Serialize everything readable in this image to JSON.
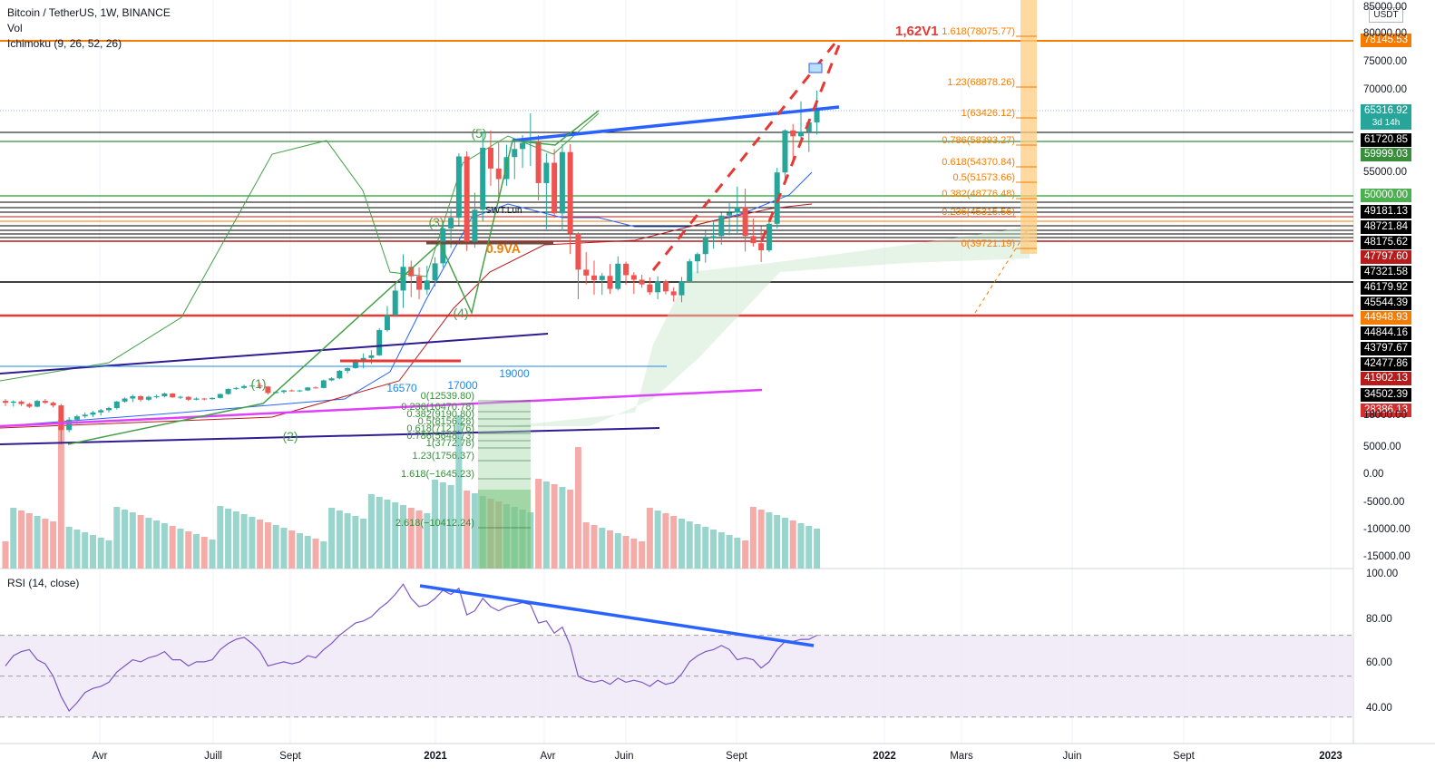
{
  "header": {
    "title": "Bitcoin / TetherUS, 1W, BINANCE",
    "vol": "Vol",
    "ichimoku": "Ichimoku (9, 26, 52, 26)"
  },
  "rsi_title": "RSI (14, close)",
  "unit_label": "USDT",
  "price_axis": [
    "85000.00",
    "80000.00",
    "75000.00",
    "70000.00",
    "55000.00",
    "5000.00",
    "0.00",
    "-5000.00",
    "-10000.00",
    "-15000.00",
    "18000.00"
  ],
  "rsi_axis": [
    "100.00",
    "80.00",
    "60.00",
    "40.00"
  ],
  "time_axis": [
    "Avr",
    "Juill",
    "Sept",
    "2021",
    "Avr",
    "Juin",
    "Sept",
    "2022",
    "Mars",
    "Juin",
    "Sept",
    "2023"
  ],
  "price_tags": [
    {
      "text": "78145.53",
      "color": "#f57c00"
    },
    {
      "text": "65316.92",
      "sub": "3d 14h",
      "color": "#26a69a"
    },
    {
      "text": "61720.85",
      "color": "#000000"
    },
    {
      "text": "59999.03",
      "color": "#388e3c"
    },
    {
      "text": "50000.00",
      "color": "#4caf50"
    },
    {
      "text": "49181.13",
      "color": "#000000"
    },
    {
      "text": "48721.84",
      "color": "#000000"
    },
    {
      "text": "48175.62",
      "color": "#000000"
    },
    {
      "text": "47797.60",
      "color": "#b71c1c"
    },
    {
      "text": "47321.58",
      "color": "#000000"
    },
    {
      "text": "46179.92",
      "color": "#000000"
    },
    {
      "text": "45544.39",
      "color": "#000000"
    },
    {
      "text": "44948.93",
      "color": "#f57c00"
    },
    {
      "text": "44844.16",
      "color": "#000000"
    },
    {
      "text": "43797.67",
      "color": "#000000"
    },
    {
      "text": "42477.86",
      "color": "#000000"
    },
    {
      "text": "41902.13",
      "color": "#b71c1c"
    },
    {
      "text": "34502.39",
      "color": "#000000"
    },
    {
      "text": "28386.13",
      "color": "#d32f2f"
    }
  ],
  "annotations": {
    "target": "1,62V1",
    "fib_orange": [
      "1.618(78075.77)",
      "1.23(68878.26)",
      "1(63426.12)",
      "0.786(58393.27)",
      "0.618(54370.84)",
      "0.5(51573.66)",
      "0.382(48776.48)",
      "0.236(45315.56)",
      "0(39721.19)"
    ],
    "fib_green": [
      "0(12539.80)",
      "0.236(10470.78)",
      "0.382(9190.80)",
      "0.5(8156.28)",
      "0.618(7121.76)",
      "0.786(5648.73)",
      "1(3772.78)",
      "1.23(1756.37)",
      "1.618(−1645.23)",
      "2.618(−10412.24)"
    ],
    "waves": [
      "(5)",
      "(3)",
      "(4)",
      "(1)",
      "(2)"
    ],
    "levels_text": [
      "19000",
      "17000",
      "16570"
    ],
    "poc": "0.9VA",
    "val": "SWT.Lun"
  },
  "colors": {
    "up": "#26a69a",
    "down": "#ef5350",
    "fib_orange": "#f57c00",
    "fib_green": "#388e3c",
    "trend_blue": "#2962ff",
    "rsi": "#7e57c2"
  },
  "chart_data": [
    {
      "type": "candlestick",
      "title": "Bitcoin / TetherUS, 1W, BINANCE",
      "y_range": [
        -15000,
        85000
      ],
      "x_ticks": [
        "Avr",
        "Juill",
        "Sept",
        "2021",
        "Avr",
        "Juin",
        "Sept",
        "2022",
        "Mars",
        "Juin",
        "Sept",
        "2023"
      ],
      "ohlc": [
        [
          8900,
          9200,
          8100,
          8600
        ],
        [
          8600,
          9000,
          8000,
          8800
        ],
        [
          8800,
          9000,
          8100,
          8400
        ],
        [
          8400,
          8600,
          7800,
          8000
        ],
        [
          8000,
          9100,
          7900,
          8900
        ],
        [
          8900,
          9200,
          8400,
          8600
        ],
        [
          8600,
          8800,
          7900,
          8200
        ],
        [
          8200,
          8400,
          4000,
          5200
        ],
        [
          5200,
          6600,
          5000,
          6300
        ],
        [
          6300,
          6900,
          5800,
          6700
        ],
        [
          6700,
          7200,
          6500,
          6900
        ],
        [
          6900,
          7400,
          6600,
          7200
        ],
        [
          7200,
          7700,
          6800,
          7500
        ],
        [
          7500,
          8000,
          7200,
          7800
        ],
        [
          7800,
          8900,
          7600,
          8800
        ],
        [
          8800,
          9500,
          8600,
          9300
        ],
        [
          9300,
          10000,
          8700,
          9700
        ],
        [
          9700,
          9900,
          8800,
          9100
        ],
        [
          9100,
          9800,
          8900,
          9600
        ],
        [
          9600,
          10000,
          9300,
          9700
        ],
        [
          9700,
          10400,
          9500,
          10200
        ],
        [
          10200,
          10300,
          9400,
          9500
        ],
        [
          9500,
          9800,
          9200,
          9600
        ],
        [
          9600,
          9700,
          8900,
          9100
        ],
        [
          9100,
          9500,
          9000,
          9300
        ],
        [
          9300,
          9400,
          9000,
          9200
        ],
        [
          9200,
          9500,
          9100,
          9400
        ],
        [
          9400,
          10200,
          9300,
          10100
        ],
        [
          10100,
          11200,
          10000,
          11100
        ],
        [
          11100,
          11500,
          10900,
          11300
        ],
        [
          11300,
          12000,
          11100,
          11700
        ],
        [
          11700,
          12200,
          11500,
          11800
        ],
        [
          11800,
          12400,
          11100,
          11600
        ],
        [
          11600,
          11700,
          10000,
          10300
        ],
        [
          10300,
          10700,
          10200,
          10500
        ],
        [
          10500,
          10900,
          10200,
          10800
        ],
        [
          10800,
          11000,
          10600,
          10700
        ],
        [
          10700,
          10900,
          10500,
          10800
        ],
        [
          10800,
          11500,
          10700,
          11400
        ],
        [
          11400,
          11600,
          11200,
          11300
        ],
        [
          11300,
          13200,
          11200,
          13000
        ],
        [
          13000,
          13800,
          12800,
          13500
        ],
        [
          13500,
          15800,
          13300,
          15500
        ],
        [
          15500,
          16500,
          14800,
          16300
        ],
        [
          16300,
          18500,
          16100,
          18200
        ],
        [
          18200,
          19400,
          16200,
          18700
        ],
        [
          18700,
          19900,
          17600,
          19100
        ],
        [
          19100,
          23800,
          19000,
          23400
        ],
        [
          23400,
          28400,
          23100,
          26400
        ],
        [
          26400,
          34000,
          26000,
          32000
        ],
        [
          32000,
          41900,
          28000,
          38200
        ],
        [
          38200,
          40000,
          30500,
          35600
        ],
        [
          35600,
          38000,
          30000,
          32200
        ],
        [
          32200,
          38500,
          31000,
          34500
        ],
        [
          34500,
          41000,
          33000,
          39200
        ],
        [
          39200,
          48000,
          38000,
          47100
        ],
        [
          47100,
          49700,
          44000,
          48500
        ],
        [
          48500,
          58000,
          47500,
          57500
        ],
        [
          57500,
          58300,
          43000,
          45200
        ],
        [
          45200,
          52000,
          44000,
          49600
        ],
        [
          49600,
          61600,
          48000,
          58900
        ],
        [
          58900,
          61800,
          53000,
          55600
        ],
        [
          55600,
          59800,
          50500,
          54000
        ],
        [
          54000,
          59400,
          53000,
          57400
        ],
        [
          57400,
          60000,
          54000,
          58700
        ],
        [
          58700,
          61000,
          55700,
          59700
        ],
        [
          59700,
          64800,
          56000,
          60000
        ],
        [
          60000,
          61000,
          50900,
          53400
        ],
        [
          53400,
          58000,
          47000,
          56500
        ],
        [
          56500,
          58700,
          48500,
          49100
        ],
        [
          49100,
          59500,
          46800,
          58200
        ],
        [
          58200,
          59500,
          42000,
          46400
        ],
        [
          46400,
          46600,
          30000,
          37400
        ],
        [
          37400,
          42600,
          33500,
          35800
        ],
        [
          35800,
          40000,
          31000,
          34600
        ],
        [
          34600,
          36500,
          31000,
          35700
        ],
        [
          35700,
          39000,
          31200,
          32400
        ],
        [
          32400,
          41300,
          32000,
          39100
        ],
        [
          39100,
          39700,
          33400,
          35900
        ],
        [
          35900,
          36700,
          31200,
          34700
        ],
        [
          34700,
          36000,
          32700,
          33500
        ],
        [
          33500,
          35300,
          31000,
          31600
        ],
        [
          31600,
          35600,
          30000,
          34200
        ],
        [
          34200,
          34700,
          31100,
          31800
        ],
        [
          31800,
          32800,
          29400,
          30900
        ],
        [
          30900,
          35400,
          29300,
          34300
        ],
        [
          34300,
          40500,
          34100,
          39800
        ],
        [
          39800,
          42500,
          36400,
          42000
        ],
        [
          42000,
          46800,
          39400,
          45900
        ],
        [
          45900,
          48000,
          43700,
          46100
        ],
        [
          46100,
          49200,
          45000,
          48800
        ],
        [
          48800,
          50500,
          46200,
          49200
        ],
        [
          49200,
          52900,
          46500,
          49900
        ],
        [
          49900,
          52600,
          42800,
          46100
        ],
        [
          46100,
          48400,
          44400,
          45200
        ],
        [
          45200,
          47400,
          39600,
          43200
        ],
        [
          43200,
          48500,
          42600,
          47700
        ],
        [
          47700,
          55700,
          47100,
          55000
        ],
        [
          55000,
          62000,
          53900,
          61800
        ],
        [
          61800,
          62900,
          56500,
          60800
        ],
        [
          60800,
          67000,
          59800,
          61600
        ],
        [
          61600,
          63500,
          58200,
          63200
        ],
        [
          63200,
          69000,
          61100,
          65300
        ]
      ],
      "volume_axis": [
        5000,
        0,
        -5000,
        -10000,
        -15000
      ]
    },
    {
      "type": "line",
      "title": "RSI (14, close)",
      "ylim": [
        20,
        100
      ],
      "y_ticks": [
        100,
        80,
        60,
        40
      ],
      "band": [
        30,
        70
      ],
      "midline": 50,
      "values": [
        55,
        60,
        62,
        63,
        58,
        56,
        50,
        40,
        33,
        37,
        42,
        44,
        45,
        47,
        52,
        55,
        58,
        57,
        59,
        60,
        62,
        58,
        58,
        55,
        57,
        57,
        58,
        63,
        66,
        68,
        69,
        66,
        62,
        55,
        56,
        57,
        56,
        57,
        60,
        59,
        63,
        66,
        70,
        73,
        76,
        77,
        79,
        83,
        86,
        90,
        95,
        88,
        84,
        85,
        88,
        92,
        90,
        93,
        80,
        82,
        88,
        84,
        82,
        84,
        85,
        86,
        85,
        76,
        77,
        71,
        74,
        65,
        50,
        48,
        47,
        48,
        46,
        49,
        47,
        48,
        47,
        45,
        48,
        46,
        47,
        51,
        57,
        60,
        62,
        63,
        65,
        63,
        58,
        59,
        58,
        54,
        57,
        63,
        67,
        67,
        68,
        68,
        70
      ],
      "annotations": [
        "RSI trendline from the February 2021 peak to the current high (bearish divergence)"
      ]
    }
  ]
}
